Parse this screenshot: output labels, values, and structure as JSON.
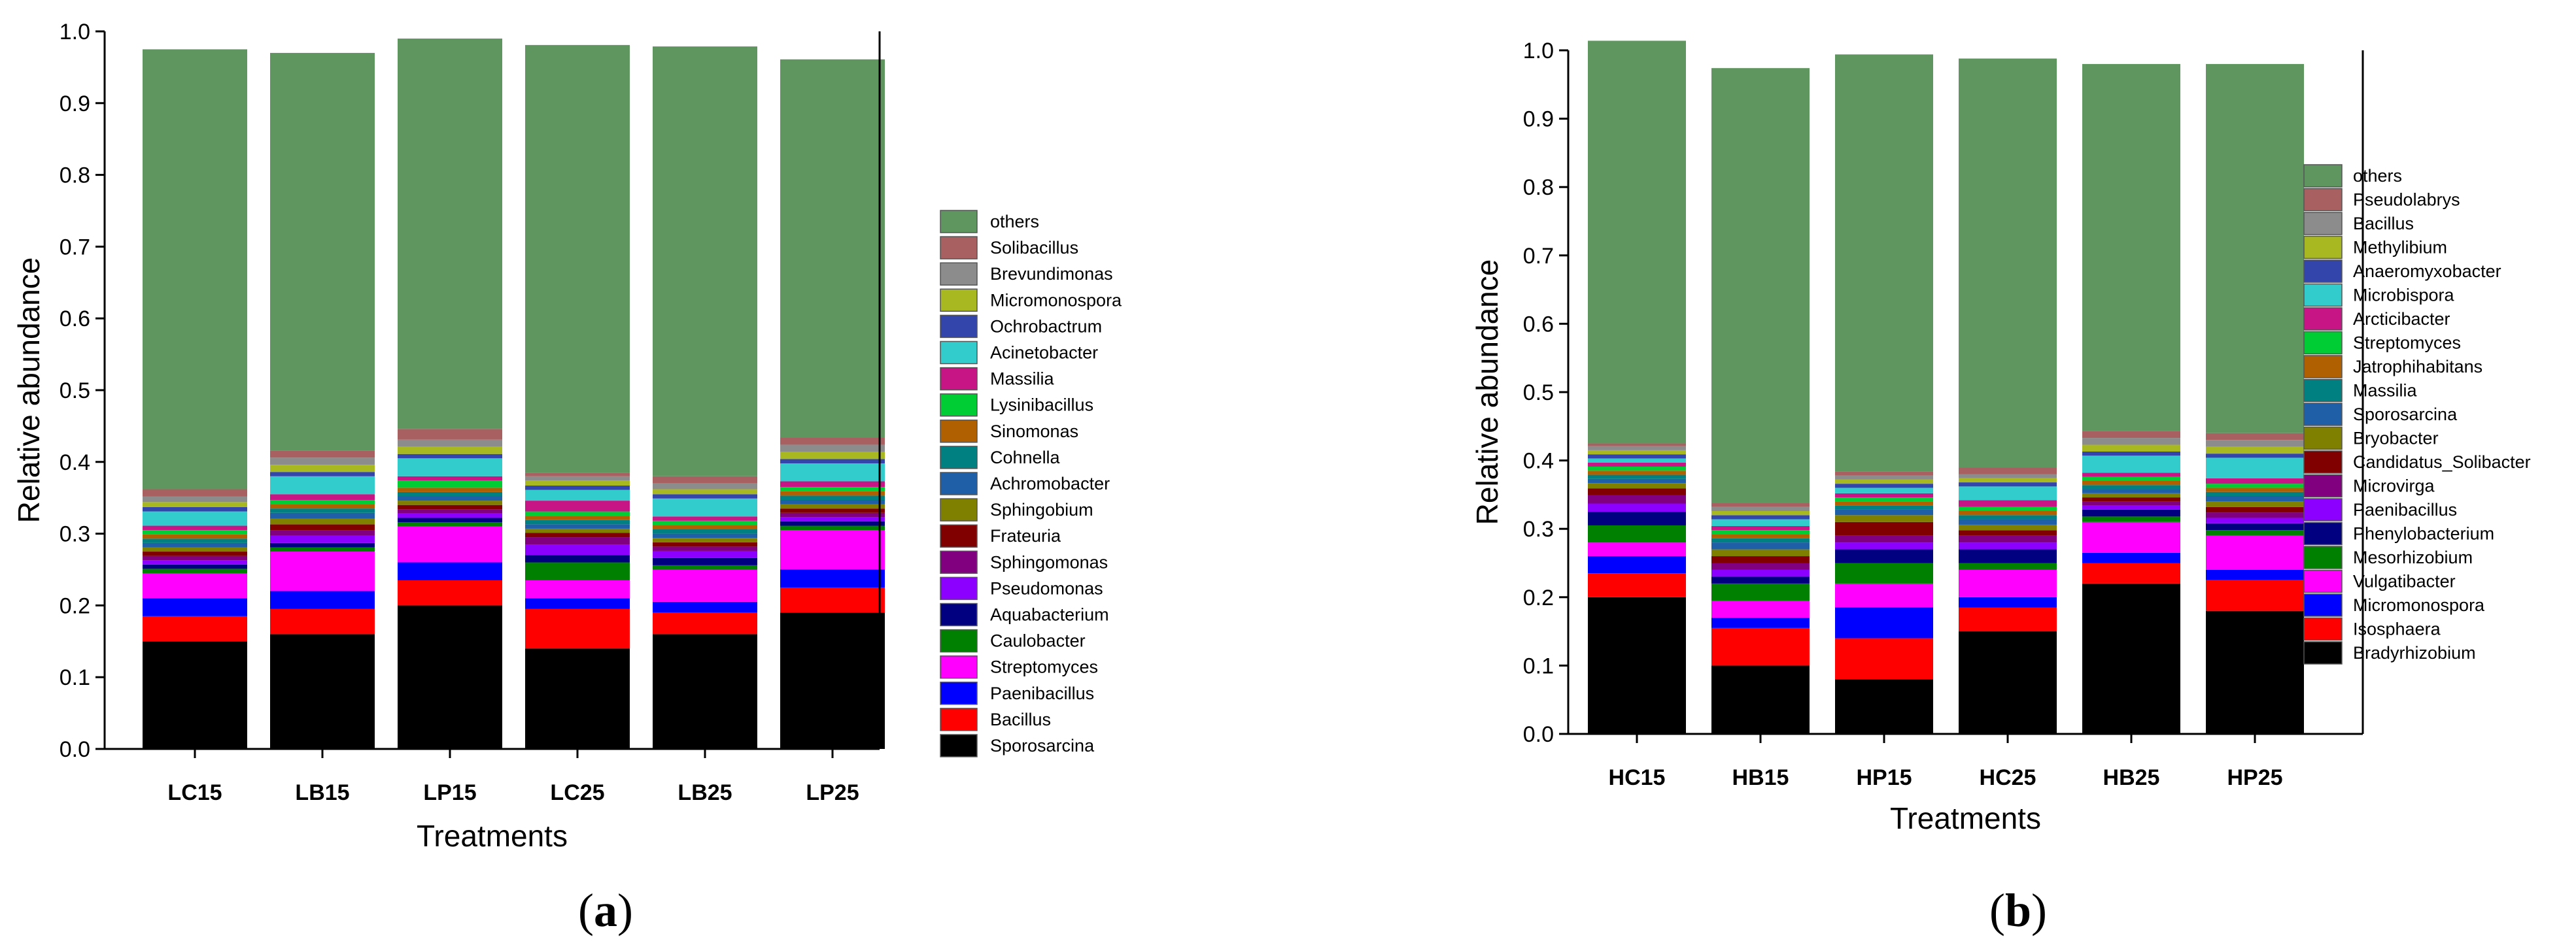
{
  "chart_data": [
    {
      "type": "stacked-bar",
      "panel_label": "a",
      "title": "",
      "xlabel": "Treatments",
      "ylabel": "Relative abundance",
      "ylim": [
        0,
        1.0
      ],
      "yticks": [
        "0.0",
        "0.1",
        "0.2",
        "0.3",
        "0.4",
        "0.5",
        "0.6",
        "0.7",
        "0.8",
        "0.9",
        "1.0"
      ],
      "categories": [
        "LC15",
        "LB15",
        "LP15",
        "LC25",
        "LB25",
        "LP25"
      ],
      "series": [
        {
          "name": "Sporosarcina",
          "color": "#000000",
          "values": [
            0.15,
            0.16,
            0.2,
            0.14,
            0.16,
            0.19
          ]
        },
        {
          "name": "Bacillus",
          "color": "#ff0000",
          "values": [
            0.035,
            0.035,
            0.035,
            0.055,
            0.03,
            0.035
          ]
        },
        {
          "name": "Paenibacillus",
          "color": "#0000ff",
          "values": [
            0.025,
            0.025,
            0.025,
            0.015,
            0.015,
            0.025
          ]
        },
        {
          "name": "Streptomyces",
          "color": "#ff00ff",
          "values": [
            0.035,
            0.055,
            0.05,
            0.025,
            0.045,
            0.055
          ]
        },
        {
          "name": "Caulobacter",
          "color": "#008000",
          "values": [
            0.006,
            0.006,
            0.006,
            0.025,
            0.006,
            0.006
          ]
        },
        {
          "name": "Aquabacterium",
          "color": "#000080",
          "values": [
            0.006,
            0.006,
            0.006,
            0.01,
            0.01,
            0.006
          ]
        },
        {
          "name": "Pseudomonas",
          "color": "#8b00ff",
          "values": [
            0.006,
            0.01,
            0.006,
            0.015,
            0.01,
            0.006
          ]
        },
        {
          "name": "Sphingomonas",
          "color": "#800080",
          "values": [
            0.006,
            0.008,
            0.006,
            0.01,
            0.006,
            0.006
          ]
        },
        {
          "name": "Frateuria",
          "color": "#800000",
          "values": [
            0.006,
            0.008,
            0.006,
            0.006,
            0.006,
            0.006
          ]
        },
        {
          "name": "Sphingobium",
          "color": "#808000",
          "values": [
            0.006,
            0.008,
            0.006,
            0.006,
            0.006,
            0.006
          ]
        },
        {
          "name": "Achromobacter",
          "color": "#1f5fa8",
          "values": [
            0.006,
            0.008,
            0.006,
            0.006,
            0.006,
            0.006
          ]
        },
        {
          "name": "Cohnella",
          "color": "#008080",
          "values": [
            0.006,
            0.006,
            0.006,
            0.006,
            0.006,
            0.006
          ]
        },
        {
          "name": "Sinomonas",
          "color": "#b06000",
          "values": [
            0.006,
            0.006,
            0.006,
            0.006,
            0.006,
            0.006
          ]
        },
        {
          "name": "Lysinibacillus",
          "color": "#00cc33",
          "values": [
            0.006,
            0.006,
            0.01,
            0.006,
            0.006,
            0.006
          ]
        },
        {
          "name": "Massilia",
          "color": "#c71585",
          "values": [
            0.006,
            0.008,
            0.006,
            0.015,
            0.006,
            0.008
          ]
        },
        {
          "name": "Acinetobacter",
          "color": "#33cccc",
          "values": [
            0.02,
            0.025,
            0.025,
            0.015,
            0.025,
            0.025
          ]
        },
        {
          "name": "Ochrobactrum",
          "color": "#3344aa",
          "values": [
            0.006,
            0.006,
            0.006,
            0.006,
            0.006,
            0.006
          ]
        },
        {
          "name": "Micromonospora",
          "color": "#a8b820",
          "values": [
            0.007,
            0.01,
            0.01,
            0.007,
            0.007,
            0.01
          ]
        },
        {
          "name": "Brevundimonas",
          "color": "#8c8c8c",
          "values": [
            0.008,
            0.01,
            0.01,
            0.006,
            0.008,
            0.01
          ]
        },
        {
          "name": "Solibacillus",
          "color": "#a86060",
          "values": [
            0.01,
            0.01,
            0.015,
            0.005,
            0.01,
            0.01
          ]
        },
        {
          "name": "others",
          "color": "#5f9660",
          "values": [
            0.613,
            0.554,
            0.544,
            0.596,
            0.599,
            0.527
          ]
        }
      ],
      "legend": [
        "others",
        "Solibacillus",
        "Brevundimonas",
        "Micromonospora",
        "Ochrobactrum",
        "Acinetobacter",
        "Massilia",
        "Lysinibacillus",
        "Sinomonas",
        "Cohnella",
        "Achromobacter",
        "Sphingobium",
        "Frateuria",
        "Sphingomonas",
        "Pseudomonas",
        "Aquabacterium",
        "Caulobacter",
        "Streptomyces",
        "Paenibacillus",
        "Bacillus",
        "Sporosarcina"
      ],
      "legend_position": "right"
    },
    {
      "type": "stacked-bar",
      "panel_label": "b",
      "title": "",
      "xlabel": "Treatments",
      "ylabel": "Relative abundance",
      "ylim": [
        0,
        1.0
      ],
      "yticks": [
        "0.0",
        "0.1",
        "0.2",
        "0.3",
        "0.4",
        "0.5",
        "0.6",
        "0.7",
        "0.8",
        "0.9",
        "1.0"
      ],
      "categories": [
        "HC15",
        "HB15",
        "HP15",
        "HC25",
        "HB25",
        "HP25"
      ],
      "series": [
        {
          "name": "Bradyrhizobium",
          "color": "#000000",
          "values": [
            0.2,
            0.1,
            0.08,
            0.15,
            0.22,
            0.18
          ]
        },
        {
          "name": "Isosphaera",
          "color": "#ff0000",
          "values": [
            0.035,
            0.055,
            0.06,
            0.035,
            0.03,
            0.045
          ]
        },
        {
          "name": "Micromonospora",
          "color": "#0000ff",
          "values": [
            0.025,
            0.015,
            0.045,
            0.015,
            0.015,
            0.015
          ]
        },
        {
          "name": "Vulgatibacter",
          "color": "#ff00ff",
          "values": [
            0.02,
            0.025,
            0.035,
            0.04,
            0.045,
            0.05
          ]
        },
        {
          "name": "Mesorhizobium",
          "color": "#008000",
          "values": [
            0.025,
            0.025,
            0.03,
            0.01,
            0.008,
            0.008
          ]
        },
        {
          "name": "Phenylobacterium",
          "color": "#000080",
          "values": [
            0.02,
            0.01,
            0.02,
            0.02,
            0.01,
            0.01
          ]
        },
        {
          "name": "Paenibacillus",
          "color": "#8b00ff",
          "values": [
            0.012,
            0.01,
            0.01,
            0.01,
            0.006,
            0.008
          ]
        },
        {
          "name": "Microvirga",
          "color": "#800080",
          "values": [
            0.012,
            0.01,
            0.01,
            0.01,
            0.006,
            0.008
          ]
        },
        {
          "name": "Candidatus_Solibacter",
          "color": "#800000",
          "values": [
            0.01,
            0.01,
            0.02,
            0.008,
            0.006,
            0.008
          ]
        },
        {
          "name": "Bryobacter",
          "color": "#808000",
          "values": [
            0.008,
            0.01,
            0.01,
            0.008,
            0.006,
            0.008
          ]
        },
        {
          "name": "Sporosarcina",
          "color": "#1f5fa8",
          "values": [
            0.006,
            0.01,
            0.008,
            0.008,
            0.006,
            0.008
          ]
        },
        {
          "name": "Massilia",
          "color": "#008080",
          "values": [
            0.006,
            0.006,
            0.006,
            0.006,
            0.006,
            0.006
          ]
        },
        {
          "name": "Jatrophihabitans",
          "color": "#b06000",
          "values": [
            0.006,
            0.006,
            0.006,
            0.006,
            0.006,
            0.006
          ]
        },
        {
          "name": "Streptomyces",
          "color": "#00cc33",
          "values": [
            0.006,
            0.006,
            0.006,
            0.006,
            0.006,
            0.006
          ]
        },
        {
          "name": "Arcticibacter",
          "color": "#c71585",
          "values": [
            0.006,
            0.006,
            0.006,
            0.01,
            0.006,
            0.008
          ]
        },
        {
          "name": "Microbispora",
          "color": "#33cccc",
          "values": [
            0.006,
            0.01,
            0.008,
            0.02,
            0.025,
            0.03
          ]
        },
        {
          "name": "Anaeromyxobacter",
          "color": "#3344aa",
          "values": [
            0.006,
            0.006,
            0.006,
            0.006,
            0.006,
            0.006
          ]
        },
        {
          "name": "Methylibium",
          "color": "#a8b820",
          "values": [
            0.006,
            0.006,
            0.006,
            0.006,
            0.01,
            0.01
          ]
        },
        {
          "name": "Bacillus",
          "color": "#8c8c8c",
          "values": [
            0.006,
            0.006,
            0.006,
            0.006,
            0.01,
            0.01
          ]
        },
        {
          "name": "Pseudolabrys",
          "color": "#a86060",
          "values": [
            0.004,
            0.006,
            0.006,
            0.01,
            0.01,
            0.01
          ]
        },
        {
          "name": "others",
          "color": "#5f9660",
          "values": [
            0.589,
            0.636,
            0.61,
            0.598,
            0.537,
            0.54
          ]
        }
      ],
      "legend": [
        "others",
        "Pseudolabrys",
        "Bacillus",
        "Methylibium",
        "Anaeromyxobacter",
        "Microbispora",
        "Arcticibacter",
        "Streptomyces",
        "Jatrophihabitans",
        "Massilia",
        "Sporosarcina",
        "Bryobacter",
        "Candidatus_Solibacter",
        "Microvirga",
        "Paenibacillus",
        "Phenylobacterium",
        "Mesorhizobium",
        "Vulgatibacter",
        "Micromonospora",
        "Isosphaera",
        "Bradyrhizobium"
      ],
      "legend_position": "right"
    }
  ]
}
